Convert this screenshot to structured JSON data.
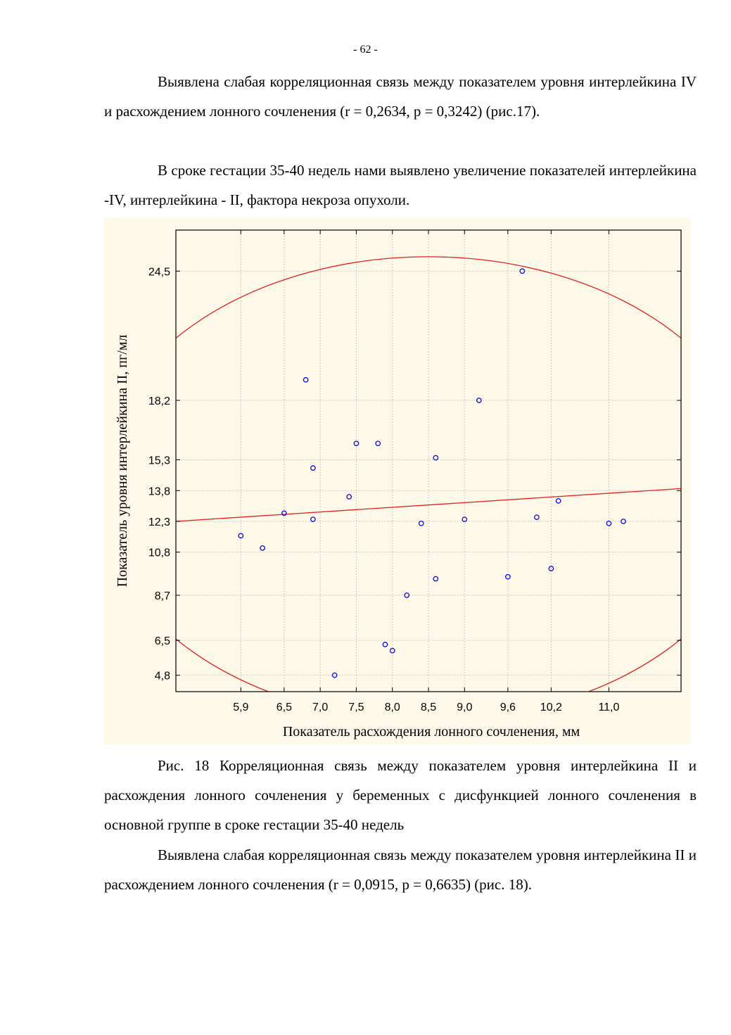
{
  "page": {
    "number": "- 62 -",
    "paragraphs": [
      "Выявлена слабая корреляционная связь между показателем уровня интерлейкина IV и расхождением лонного сочленения (r = 0,2634, p = 0,3242) (рис.17).",
      "В сроке гестации 35-40 недель нами выявлено увеличение показателей интерлейкина -IV,  интерлейкина - II, фактора некроза опухоли."
    ],
    "caption": "Рис. 18 Корреляционная связь между показателем уровня интерлейкина II и расхождения лонного сочленения у беременных с дисфункцией лонного сочленения в основной группе в сроке гестации 35-40 недель",
    "closing_paragraph": "Выявлена слабая корреляционная связь между показателем уровня интерлейкина II и расхождением лонного сочленения (r = 0,0915, p = 0,6635) (рис. 18)."
  },
  "chart_data": {
    "type": "scatter",
    "xlabel": "Показатель расхождения лонного сочленения, мм",
    "ylabel": "Показатель уровня интерлейкина II, пг/мл",
    "xlim": [
      5.0,
      12.0
    ],
    "ylim": [
      4.0,
      26.5
    ],
    "x_ticks": [
      5.9,
      6.5,
      7.0,
      7.5,
      8.0,
      8.5,
      9.0,
      9.6,
      10.2,
      11.0
    ],
    "x_tick_labels": [
      "5,9",
      "6,5",
      "7,0",
      "7,5",
      "8,0",
      "8,5",
      "9,0",
      "9,6",
      "10,2",
      "11,0"
    ],
    "y_ticks": [
      4.8,
      6.5,
      8.7,
      10.8,
      12.3,
      13.8,
      15.3,
      18.2,
      24.5
    ],
    "y_tick_labels": [
      "4,8",
      "6,5",
      "8,7",
      "10,8",
      "12,3",
      "13,8",
      "15,3",
      "18,2",
      "24,5"
    ],
    "points": [
      {
        "x": 5.9,
        "y": 11.6
      },
      {
        "x": 6.2,
        "y": 11.0
      },
      {
        "x": 6.5,
        "y": 12.7
      },
      {
        "x": 6.8,
        "y": 19.2
      },
      {
        "x": 6.9,
        "y": 14.9
      },
      {
        "x": 6.9,
        "y": 12.4
      },
      {
        "x": 7.2,
        "y": 4.8
      },
      {
        "x": 7.4,
        "y": 13.5
      },
      {
        "x": 7.5,
        "y": 16.1
      },
      {
        "x": 7.8,
        "y": 16.1
      },
      {
        "x": 7.9,
        "y": 6.3
      },
      {
        "x": 8.0,
        "y": 6.0
      },
      {
        "x": 8.2,
        "y": 8.7
      },
      {
        "x": 8.4,
        "y": 12.2
      },
      {
        "x": 8.6,
        "y": 15.4
      },
      {
        "x": 8.6,
        "y": 9.5
      },
      {
        "x": 9.0,
        "y": 12.4
      },
      {
        "x": 9.2,
        "y": 18.2
      },
      {
        "x": 9.6,
        "y": 9.6
      },
      {
        "x": 9.8,
        "y": 24.5
      },
      {
        "x": 10.0,
        "y": 12.5
      },
      {
        "x": 10.2,
        "y": 10.0
      },
      {
        "x": 10.3,
        "y": 13.3
      },
      {
        "x": 11.0,
        "y": 12.2
      },
      {
        "x": 11.2,
        "y": 12.3
      }
    ],
    "regression_line": {
      "x": [
        5.0,
        12.0
      ],
      "y": [
        12.3,
        13.9
      ]
    },
    "confidence_ellipse": {
      "center_x": 8.5,
      "center_y": 13.9,
      "radius_x": 4.6,
      "radius_y": 11.3
    },
    "grid": true,
    "colors": {
      "points": "#1a1ad6",
      "fit": "#e02020",
      "grid": "#c8c8c8",
      "background": "#fdf8e8"
    }
  }
}
